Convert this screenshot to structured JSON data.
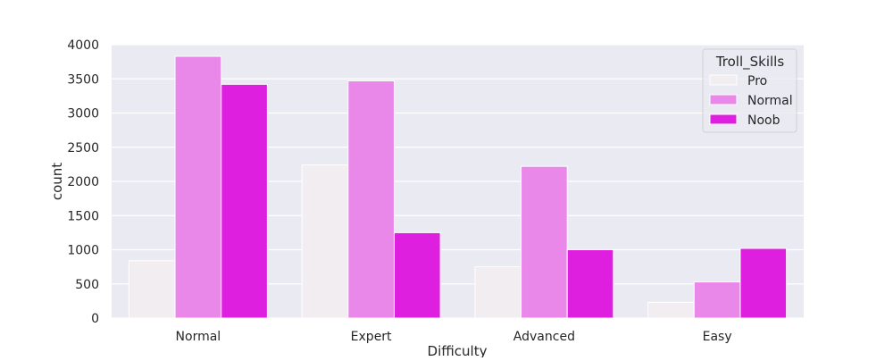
{
  "chart_data": {
    "type": "bar",
    "xlabel": "Difficulty",
    "ylabel": "count",
    "categories": [
      "Normal",
      "Expert",
      "Advanced",
      "Easy"
    ],
    "ylim": [
      0,
      4000
    ],
    "yticks": [
      0,
      500,
      1000,
      1500,
      2000,
      2500,
      3000,
      3500,
      4000
    ],
    "grid": true,
    "legend": {
      "title": "Troll_Skills",
      "placement": "top-right"
    },
    "series": [
      {
        "name": "Pro",
        "color": "#f1edf1",
        "values": [
          840,
          2240,
          750,
          230
        ]
      },
      {
        "name": "Normal",
        "color": "#ea88ea",
        "values": [
          3830,
          3470,
          2220,
          530
        ]
      },
      {
        "name": "Noob",
        "color": "#df1fdf",
        "values": [
          3420,
          1250,
          1000,
          1020
        ]
      }
    ]
  }
}
